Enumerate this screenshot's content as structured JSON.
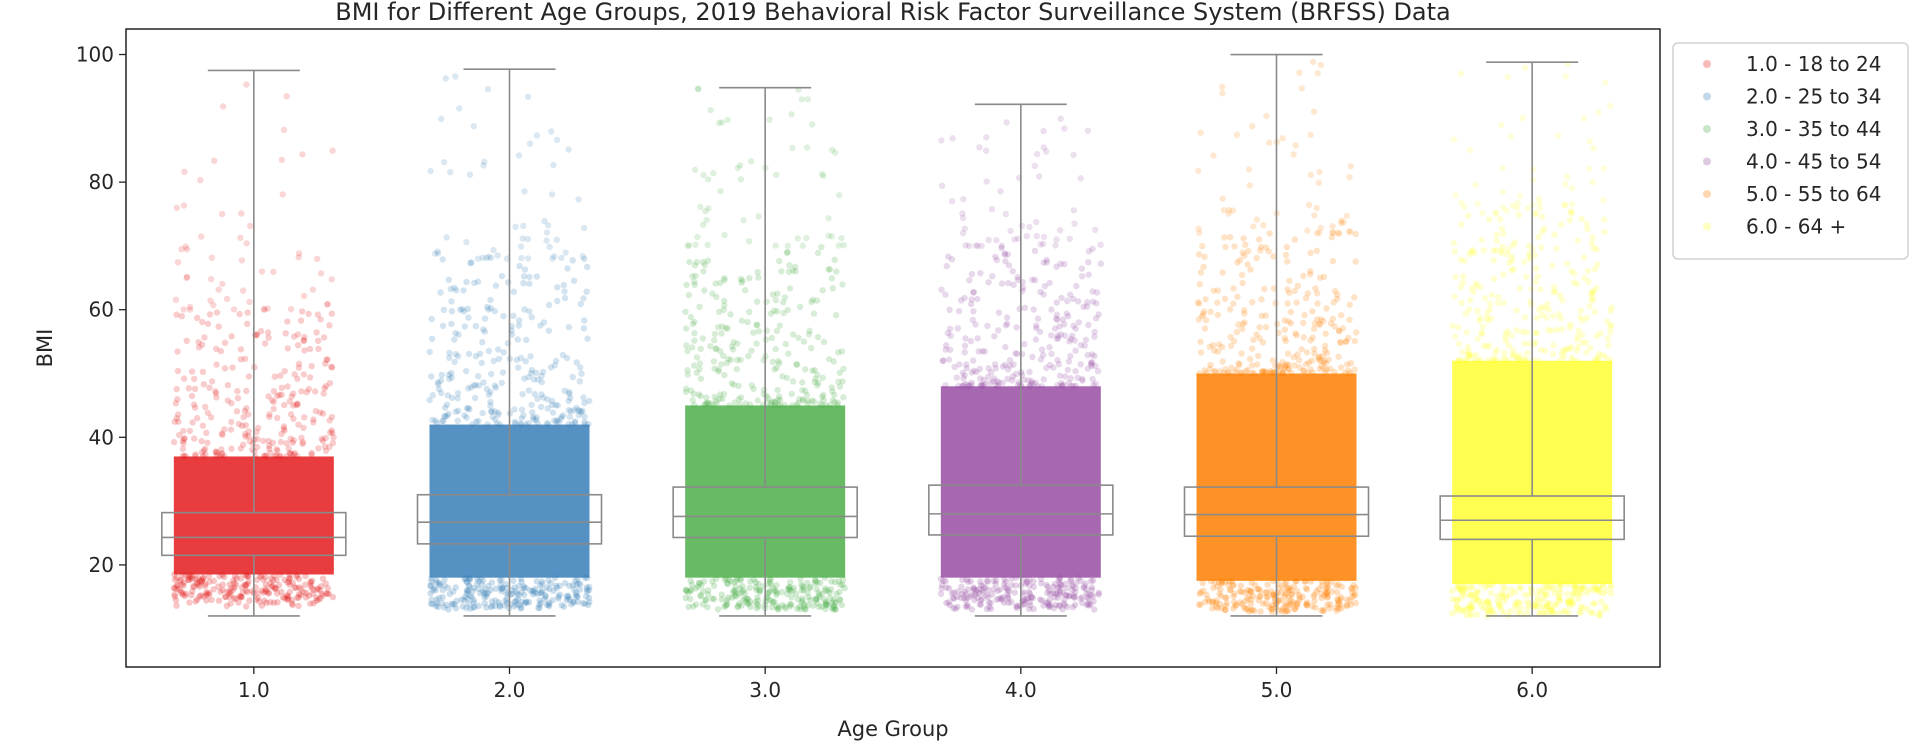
{
  "chart_data": {
    "type": "box-strip",
    "title": "BMI for Different Age Groups, 2019 Behavioral Risk Factor Surveillance System (BRFSS) Data",
    "xlabel": "Age Group",
    "ylabel": "BMI",
    "ylim": [
      4,
      104
    ],
    "yticks": [
      20,
      40,
      60,
      80,
      100
    ],
    "categories": [
      "1.0",
      "2.0",
      "3.0",
      "4.0",
      "5.0",
      "6.0"
    ],
    "legend_position": "outside-top-right",
    "series": [
      {
        "name": "1.0 - 18 to 24",
        "color": "#e41a1c",
        "q1": 21.5,
        "median": 24.3,
        "q3": 28.2,
        "whisker_low": 12.0,
        "whisker_high": 97.5,
        "dense_low": 18.5,
        "dense_high": 37,
        "sparse_high": 60,
        "max": 98
      },
      {
        "name": "2.0 - 25 to 34",
        "color": "#377eb8",
        "q1": 23.3,
        "median": 26.7,
        "q3": 31.0,
        "whisker_low": 12.0,
        "whisker_high": 97.7,
        "dense_low": 18,
        "dense_high": 42,
        "sparse_high": 68,
        "max": 98
      },
      {
        "name": "3.0 - 35 to 44",
        "color": "#4daf4a",
        "q1": 24.3,
        "median": 27.6,
        "q3": 32.2,
        "whisker_low": 12.0,
        "whisker_high": 94.8,
        "dense_low": 18,
        "dense_high": 45,
        "sparse_high": 70,
        "max": 95
      },
      {
        "name": "4.0 - 45 to 54",
        "color": "#984ea3",
        "q1": 24.7,
        "median": 28.0,
        "q3": 32.5,
        "whisker_low": 12.0,
        "whisker_high": 92.2,
        "dense_low": 18,
        "dense_high": 48,
        "sparse_high": 70,
        "max": 92
      },
      {
        "name": "5.0 - 55 to 64",
        "color": "#ff7f00",
        "q1": 24.5,
        "median": 27.9,
        "q3": 32.2,
        "whisker_low": 12.0,
        "whisker_high": 100.0,
        "dense_low": 17.5,
        "dense_high": 50,
        "sparse_high": 72,
        "max": 100
      },
      {
        "name": "6.0 - 64 +",
        "color": "#ffff33",
        "q1": 24.0,
        "median": 27.0,
        "q3": 30.8,
        "whisker_low": 12.0,
        "whisker_high": 98.8,
        "dense_low": 17,
        "dense_high": 52,
        "sparse_high": 75,
        "max": 99
      }
    ]
  }
}
